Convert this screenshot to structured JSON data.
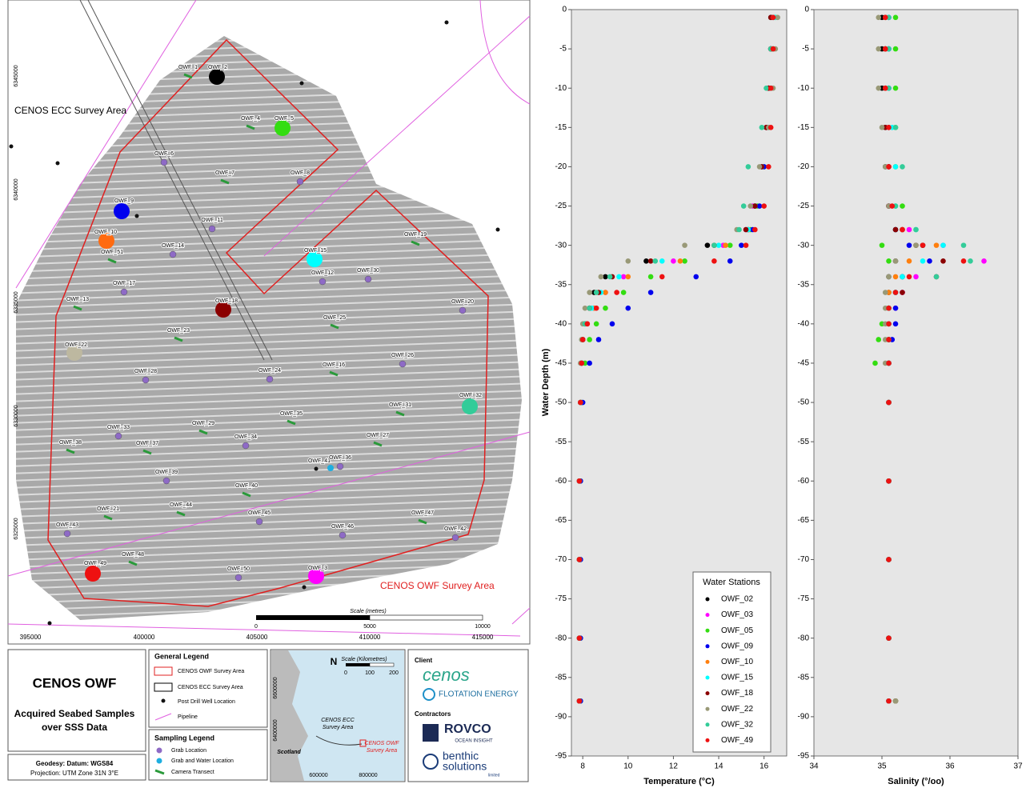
{
  "map": {
    "area_labels": [
      "CENOS ECC Survey Area",
      "CENOS OWF Survey Area"
    ],
    "eastings": [
      395000,
      400000,
      405000,
      410000,
      415000
    ],
    "northings": [
      6345000,
      6340000,
      6335000,
      6330000,
      6325000
    ],
    "scale_title": "Scale (metres)",
    "scale_ticks": [
      0,
      5000,
      10000
    ],
    "samples": [
      {
        "label": "OWF_1",
        "kind": "camera"
      },
      {
        "label": "OWF_2",
        "kind": "water",
        "color": "#000000"
      },
      {
        "label": "OWF_4",
        "kind": "camera"
      },
      {
        "label": "OWF_5",
        "kind": "water",
        "color": "#33dd11"
      },
      {
        "label": "OWF_6",
        "kind": "grab"
      },
      {
        "label": "OWF_7",
        "kind": "camera"
      },
      {
        "label": "OWF_8",
        "kind": "grab"
      },
      {
        "label": "OWF_9",
        "kind": "water",
        "color": "#0000ee"
      },
      {
        "label": "OWF_10",
        "kind": "water",
        "color": "#ff6a10"
      },
      {
        "label": "OWF_11",
        "kind": "grab"
      },
      {
        "label": "OWF_51",
        "kind": "camera"
      },
      {
        "label": "OWF_14",
        "kind": "grab"
      },
      {
        "label": "OWF_15",
        "kind": "water",
        "color": "#00ffff"
      },
      {
        "label": "OWF_19",
        "kind": "camera"
      },
      {
        "label": "OWF_12",
        "kind": "grab"
      },
      {
        "label": "OWF_30",
        "kind": "grab"
      },
      {
        "label": "OWF_17",
        "kind": "grab"
      },
      {
        "label": "OWF_13",
        "kind": "camera"
      },
      {
        "label": "OWF_18",
        "kind": "water",
        "color": "#8b0000"
      },
      {
        "label": "OWF_20",
        "kind": "grab"
      },
      {
        "label": "OWF_25",
        "kind": "camera"
      },
      {
        "label": "OWF_23",
        "kind": "camera"
      },
      {
        "label": "OWF_22",
        "kind": "water",
        "color": "#bdb8a0"
      },
      {
        "label": "OWF_26",
        "kind": "grab"
      },
      {
        "label": "OWF_16",
        "kind": "camera"
      },
      {
        "label": "OWF_24",
        "kind": "grab"
      },
      {
        "label": "OWF_28",
        "kind": "grab"
      },
      {
        "label": "OWF_31",
        "kind": "camera"
      },
      {
        "label": "OWF_32",
        "kind": "water",
        "color": "#33cc99"
      },
      {
        "label": "OWF_35",
        "kind": "camera"
      },
      {
        "label": "OWF_29",
        "kind": "camera"
      },
      {
        "label": "OWF_33",
        "kind": "grab"
      },
      {
        "label": "OWF_38",
        "kind": "camera"
      },
      {
        "label": "OWF_37",
        "kind": "camera"
      },
      {
        "label": "OWF_34",
        "kind": "grab"
      },
      {
        "label": "OWF_27",
        "kind": "camera"
      },
      {
        "label": "OWF_41",
        "kind": "grab-water"
      },
      {
        "label": "OWF_36",
        "kind": "grab"
      },
      {
        "label": "OWF_39",
        "kind": "grab"
      },
      {
        "label": "OWF_40",
        "kind": "camera"
      },
      {
        "label": "OWF_44",
        "kind": "camera"
      },
      {
        "label": "OWF_21",
        "kind": "camera"
      },
      {
        "label": "OWF_45",
        "kind": "grab"
      },
      {
        "label": "OWF_47",
        "kind": "camera"
      },
      {
        "label": "OWF_43",
        "kind": "grab"
      },
      {
        "label": "OWF_46",
        "kind": "grab"
      },
      {
        "label": "OWF_42",
        "kind": "grab"
      },
      {
        "label": "OWF_48",
        "kind": "camera"
      },
      {
        "label": "OWF_49",
        "kind": "water",
        "color": "#ee1111"
      },
      {
        "label": "OWF_50",
        "kind": "grab"
      },
      {
        "label": "OWF_3",
        "kind": "water",
        "color": "#ff00ff"
      }
    ]
  },
  "title_block": {
    "title": "CENOS OWF",
    "subtitle": [
      "Acquired Seabed Samples",
      "over SSS Data"
    ],
    "geodesy": "Geodesy: Datum: WGS84",
    "projection": "Projection: UTM Zone 31N 3°E"
  },
  "general_legend": {
    "title": "General Legend",
    "items": [
      "CENOS OWF Survey Area",
      "CENOS ECC Survey Area",
      "Post Drill Well Location",
      "Pipeline"
    ]
  },
  "sampling_legend": {
    "title": "Sampling Legend",
    "items": [
      "Grab Location",
      "Grab and Water Location",
      "Camera Transect"
    ]
  },
  "inset": {
    "north": "N",
    "scale_title": "Scale (Kilometres)",
    "scale_ticks": [
      0,
      100,
      200
    ],
    "ecc_label": [
      "CENOS ECC",
      "Survey Area"
    ],
    "owf_label": [
      "CENOS OWF",
      "Survey Area"
    ],
    "country": "Scotland",
    "northings": [
      6600000,
      6400000
    ],
    "eastings": [
      600000,
      800000
    ]
  },
  "credits": {
    "client": "Client",
    "client_logos": [
      "cenos",
      "FLOTATION ENERGY"
    ],
    "contractors": "Contractors",
    "contractor_logos": [
      "ROVCO",
      "OCEAN INSIGHT",
      "benthic",
      "solutions",
      "limited"
    ]
  },
  "chart_data": [
    {
      "type": "scatter",
      "ylabel": "Water Depth (m)",
      "xlabel": "Temperature (°C)",
      "legend_title": "Water Stations",
      "xlim": [
        7.5,
        17
      ],
      "xticks": [
        8,
        10,
        12,
        14,
        16
      ],
      "ylim": [
        -95,
        0
      ],
      "yticks": [
        0,
        -5,
        -10,
        -15,
        -20,
        -25,
        -30,
        -35,
        -40,
        -45,
        -50,
        -55,
        -60,
        -65,
        -70,
        -75,
        -80,
        -85,
        -90,
        -95
      ],
      "y": [
        -1,
        -5,
        -10,
        -15,
        -20,
        -25,
        -28,
        -30,
        -32,
        -34,
        -36,
        -38,
        -40,
        -42,
        -45,
        -50,
        -60,
        -70,
        -80,
        -88
      ],
      "series": [
        {
          "name": "OWF_02",
          "color": "#000000",
          "x": [
            16.3,
            16.3,
            16.2,
            16.1,
            15.9,
            15.6,
            15.3,
            13.5,
            10.8,
            9.0,
            8.5,
            8.3,
            8.1,
            8.0,
            7.95,
            7.9,
            7.85,
            7.85,
            7.85,
            7.85
          ]
        },
        {
          "name": "OWF_03",
          "color": "#ff00ff",
          "x": [
            16.4,
            16.3,
            16.2,
            16.1,
            15.9,
            15.5,
            15.2,
            14.2,
            12.0,
            9.8,
            9.0,
            8.5,
            8.2,
            8.0,
            7.95,
            7.9,
            7.85,
            7.85,
            7.85,
            7.85
          ]
        },
        {
          "name": "OWF_05",
          "color": "#33dd11",
          "x": [
            16.5,
            16.4,
            16.3,
            16.2,
            16.0,
            15.7,
            15.4,
            14.5,
            12.5,
            11.0,
            9.8,
            9.0,
            8.6,
            8.3,
            8.1,
            7.95,
            7.9,
            7.9,
            7.9,
            7.9
          ]
        },
        {
          "name": "OWF_09",
          "color": "#0000ee",
          "x": [
            16.4,
            16.3,
            16.2,
            16.1,
            16.0,
            15.8,
            15.5,
            15.0,
            14.5,
            13.0,
            11.0,
            10.0,
            9.3,
            8.7,
            8.3,
            8.0,
            7.9,
            7.9,
            7.9,
            7.9
          ]
        },
        {
          "name": "OWF_10",
          "color": "#ff7f0e",
          "x": [
            16.4,
            16.3,
            16.2,
            16.1,
            15.9,
            15.6,
            15.3,
            14.3,
            12.3,
            10.0,
            9.0,
            8.5,
            8.2,
            8.0,
            7.95,
            7.9,
            7.85,
            7.85,
            7.85,
            7.85
          ]
        },
        {
          "name": "OWF_15",
          "color": "#00ffff",
          "x": [
            16.5,
            16.4,
            16.3,
            16.2,
            15.9,
            15.6,
            15.3,
            14.0,
            11.5,
            9.6,
            8.8,
            8.4,
            8.1,
            8.0,
            7.95,
            7.9,
            7.85,
            7.85,
            7.85,
            7.85
          ]
        },
        {
          "name": "OWF_18",
          "color": "#8b0000",
          "x": [
            16.3,
            16.3,
            16.2,
            16.1,
            15.9,
            15.6,
            15.2,
            13.8,
            11.0,
            9.3,
            8.7,
            8.3,
            8.1,
            8.0,
            7.95,
            7.9,
            7.85,
            7.85,
            7.85,
            7.85
          ]
        },
        {
          "name": "OWF_22",
          "color": "#999977",
          "x": [
            16.6,
            16.5,
            16.4,
            16.2,
            15.8,
            15.4,
            14.8,
            12.5,
            10.0,
            8.8,
            8.3,
            8.1,
            8.0,
            7.95,
            7.9,
            7.9,
            7.85,
            7.85,
            7.85,
            7.85
          ]
        },
        {
          "name": "OWF_32",
          "color": "#33cc99",
          "x": [
            16.4,
            16.3,
            16.1,
            15.9,
            15.3,
            15.1,
            14.9,
            13.8,
            11.2,
            9.2,
            8.6,
            8.3,
            8.1,
            8.0,
            7.95,
            7.9,
            7.85,
            7.85,
            7.85,
            7.85
          ]
        },
        {
          "name": "OWF_49",
          "color": "#ee1111",
          "x": [
            16.4,
            16.4,
            16.3,
            16.3,
            16.2,
            16.0,
            15.6,
            15.2,
            13.8,
            11.5,
            9.5,
            8.6,
            8.2,
            8.0,
            7.95,
            7.9,
            7.85,
            7.85,
            7.85,
            7.85
          ]
        }
      ]
    },
    {
      "type": "scatter",
      "xlabel": "Salinity (°/oo)",
      "xlim": [
        34,
        37
      ],
      "xticks": [
        34,
        35,
        36,
        37
      ],
      "ylim": [
        -95,
        0
      ],
      "yticks": [
        0,
        -5,
        -10,
        -15,
        -20,
        -25,
        -30,
        -35,
        -40,
        -45,
        -50,
        -55,
        -60,
        -65,
        -70,
        -75,
        -80,
        -85,
        -90,
        -95
      ],
      "y": [
        -1,
        -5,
        -10,
        -15,
        -20,
        -25,
        -28,
        -30,
        -32,
        -34,
        -36,
        -38,
        -40,
        -42,
        -45,
        -50,
        -60,
        -70,
        -80,
        -88
      ],
      "series": [
        {
          "color": "#000000",
          "x": [
            35.0,
            35.0,
            35.0,
            35.05,
            35.05,
            35.1,
            35.3,
            35.6,
            35.2,
            35.1,
            35.1,
            35.1,
            35.1,
            35.1,
            35.1,
            35.1,
            35.1,
            35.1,
            35.1,
            35.1
          ]
        },
        {
          "color": "#ff00ff",
          "x": [
            35.1,
            35.1,
            35.1,
            35.1,
            35.1,
            35.1,
            35.4,
            35.9,
            36.5,
            35.5,
            35.3,
            35.2,
            35.1,
            35.1,
            35.1,
            35.1,
            35.1,
            35.1,
            35.1,
            35.1
          ]
        },
        {
          "color": "#33dd11",
          "x": [
            35.2,
            35.2,
            35.2,
            35.2,
            35.2,
            35.3,
            35.2,
            35.0,
            35.1,
            35.3,
            35.2,
            35.1,
            35.0,
            34.95,
            34.9,
            35.1,
            35.1,
            35.1,
            35.1,
            35.2
          ]
        },
        {
          "color": "#0000ee",
          "x": [
            35.1,
            35.1,
            35.1,
            35.1,
            35.1,
            35.1,
            35.2,
            35.4,
            35.7,
            35.3,
            35.2,
            35.2,
            35.2,
            35.15,
            35.1,
            35.1,
            35.1,
            35.1,
            35.1,
            35.1
          ]
        },
        {
          "color": "#ff7f0e",
          "x": [
            35.05,
            35.05,
            35.05,
            35.1,
            35.1,
            35.1,
            35.3,
            35.8,
            35.4,
            35.2,
            35.1,
            35.1,
            35.1,
            35.1,
            35.1,
            35.1,
            35.1,
            35.1,
            35.1,
            35.1
          ]
        },
        {
          "color": "#00ffff",
          "x": [
            35.1,
            35.1,
            35.1,
            35.15,
            35.2,
            35.2,
            35.5,
            35.9,
            35.6,
            35.3,
            35.2,
            35.1,
            35.1,
            35.1,
            35.1,
            35.1,
            35.1,
            35.1,
            35.1,
            35.1
          ]
        },
        {
          "color": "#8b0000",
          "x": [
            35.05,
            35.05,
            35.05,
            35.05,
            35.1,
            35.1,
            35.2,
            35.5,
            35.9,
            35.8,
            35.3,
            35.1,
            35.1,
            35.1,
            35.1,
            35.1,
            35.1,
            35.1,
            35.1,
            35.2
          ]
        },
        {
          "color": "#999977",
          "x": [
            34.95,
            34.95,
            34.95,
            35.0,
            35.05,
            35.1,
            35.3,
            35.5,
            35.2,
            35.1,
            35.05,
            35.05,
            35.05,
            35.05,
            35.05,
            35.1,
            35.1,
            35.1,
            35.1,
            35.2
          ]
        },
        {
          "color": "#33cc99",
          "x": [
            35.1,
            35.1,
            35.1,
            35.2,
            35.3,
            35.2,
            35.5,
            36.2,
            36.3,
            35.8,
            35.2,
            35.1,
            35.1,
            35.1,
            35.1,
            35.1,
            35.1,
            35.1,
            35.1,
            35.1
          ]
        },
        {
          "color": "#ee1111",
          "x": [
            35.05,
            35.05,
            35.05,
            35.1,
            35.1,
            35.15,
            35.3,
            35.6,
            36.2,
            35.4,
            35.2,
            35.1,
            35.1,
            35.1,
            35.1,
            35.1,
            35.1,
            35.1,
            35.1,
            35.1
          ]
        }
      ]
    }
  ]
}
